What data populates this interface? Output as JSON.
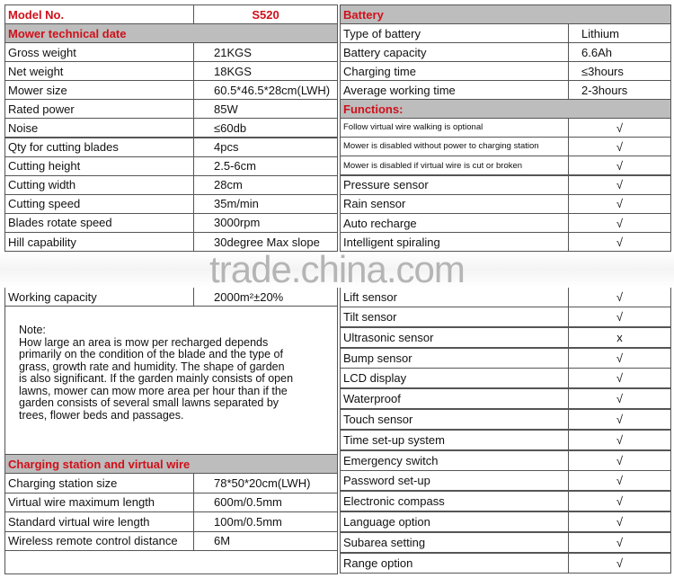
{
  "left": {
    "model_label": "Model No.",
    "model_value": "S520",
    "section1": "Mower technical date",
    "specs": [
      [
        "Gross weight",
        "21KGS"
      ],
      [
        "Net weight",
        "18KGS"
      ],
      [
        "Mower size",
        "60.5*46.5*28cm(LWH)"
      ],
      [
        "Rated power",
        "85W"
      ],
      [
        "Noise",
        "≤60db"
      ],
      [
        "Qty for cutting blades",
        "4pcs"
      ],
      [
        "Cutting height",
        "2.5-6cm"
      ],
      [
        "Cutting width",
        "28cm"
      ],
      [
        "Cutting speed",
        "35m/min"
      ],
      [
        "Blades rotate speed",
        "3000rpm"
      ],
      [
        "Hill capability",
        "30degree Max slope"
      ]
    ],
    "working_capacity": [
      "Working capacity",
      "2000m²±20%"
    ],
    "note_title": "Note:",
    "note_lines": [
      "How large an area is mow per recharged depends",
      "primarily on the condition of the blade and the type of",
      "grass, growth rate and humidity. The shape of garden",
      "is also significant. If the garden mainly consists of open",
      "lawns, mower can mow more area per hour than if the",
      "garden consists of several small lawns separated by",
      "trees, flower beds and passages."
    ],
    "section2": "Charging station and virtual wire",
    "charging": [
      [
        "Charging station size",
        "78*50*20cm(LWH)"
      ],
      [
        "Virtual wire maximum length",
        "600m/0.5mm"
      ],
      [
        "Standard virtual wire length",
        "100m/0.5mm"
      ],
      [
        "Wireless remote control distance",
        "6M"
      ]
    ]
  },
  "right": {
    "section1": "Battery",
    "battery": [
      [
        "Type of battery",
        "Lithium"
      ],
      [
        "Battery capacity",
        "6.6Ah"
      ],
      [
        "Charging time",
        "≤3hours"
      ],
      [
        "Average working time",
        "2-3hours"
      ]
    ],
    "section2": "Functions:",
    "functions": [
      [
        "Follow virtual wire walking is optional",
        "√"
      ],
      [
        "Mower is disabled without power to charging station",
        "√"
      ],
      [
        "Mower is disabled if virtual wire is cut or broken",
        "√"
      ],
      [
        "Pressure sensor",
        "√"
      ],
      [
        "Rain sensor",
        "√"
      ],
      [
        "Auto recharge",
        "√"
      ],
      [
        "Intelligent spiraling",
        "√"
      ],
      [
        "Lift sensor",
        "√"
      ],
      [
        "Tilt sensor",
        "√"
      ],
      [
        "Ultrasonic sensor",
        "x"
      ],
      [
        "Bump sensor",
        "√"
      ],
      [
        "LCD display",
        "√"
      ],
      [
        "Waterproof",
        "√"
      ],
      [
        "Touch sensor",
        "√"
      ],
      [
        "Time set-up system",
        "√"
      ],
      [
        "Emergency switch",
        "√"
      ],
      [
        "Password set-up",
        "√"
      ],
      [
        "Electronic compass",
        "√"
      ],
      [
        "Language option",
        "√"
      ],
      [
        "Subarea setting",
        "√"
      ],
      [
        "Range option",
        "√"
      ]
    ]
  },
  "watermark": "trade.china.com"
}
